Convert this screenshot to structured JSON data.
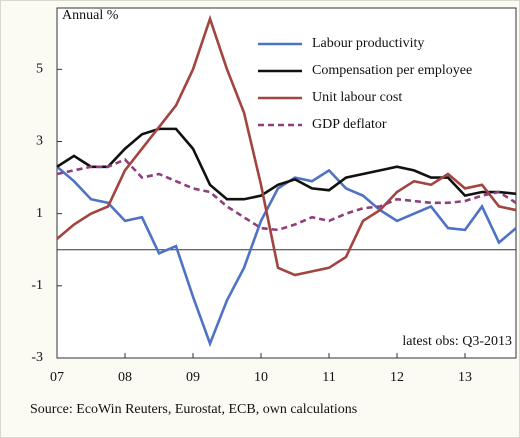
{
  "chart_data": {
    "type": "line",
    "y_label": "Annual %",
    "annotation": "latest obs: Q3-2013",
    "source": "Source: EcoWin Reuters, Eurostat, ECB, own calculations",
    "x": [
      2007,
      2007.25,
      2007.5,
      2007.75,
      2008,
      2008.25,
      2008.5,
      2008.75,
      2009,
      2009.25,
      2009.5,
      2009.75,
      2010,
      2010.25,
      2010.5,
      2010.75,
      2011,
      2011.25,
      2011.5,
      2011.75,
      2012,
      2012.25,
      2012.5,
      2012.75,
      2013,
      2013.25,
      2013.5,
      2013.75
    ],
    "xlim": [
      2007,
      2013.75
    ],
    "xticks": [
      {
        "value": 2007,
        "label": "07"
      },
      {
        "value": 2008,
        "label": "08"
      },
      {
        "value": 2009,
        "label": "09"
      },
      {
        "value": 2010,
        "label": "10"
      },
      {
        "value": 2011,
        "label": "11"
      },
      {
        "value": 2012,
        "label": "12"
      },
      {
        "value": 2013,
        "label": "13"
      }
    ],
    "ylim": [
      -3,
      6.7
    ],
    "yticks": [
      -3,
      -1,
      1,
      3,
      5
    ],
    "zero_line": true,
    "legend": "top-right",
    "series": [
      {
        "name": "Labour productivity",
        "color": "#4f72c4",
        "style": "solid",
        "values": [
          2.3,
          1.9,
          1.4,
          1.3,
          0.8,
          0.9,
          -0.1,
          0.1,
          -1.3,
          -2.6,
          -1.4,
          -0.5,
          0.8,
          1.7,
          2.0,
          1.9,
          2.2,
          1.7,
          1.5,
          1.1,
          0.8,
          1.0,
          1.2,
          0.6,
          0.55,
          1.2,
          0.2,
          0.6
        ]
      },
      {
        "name": "Compensation per employee",
        "color": "#111111",
        "style": "solid",
        "values": [
          2.3,
          2.6,
          2.3,
          2.3,
          2.8,
          3.2,
          3.35,
          3.35,
          2.8,
          1.8,
          1.4,
          1.4,
          1.5,
          1.8,
          1.95,
          1.7,
          1.65,
          2.0,
          2.1,
          2.2,
          2.3,
          2.2,
          2.0,
          2.0,
          1.5,
          1.6,
          1.6,
          1.55
        ]
      },
      {
        "name": "Unit labour cost",
        "color": "#a2443f",
        "style": "solid",
        "values": [
          0.3,
          0.7,
          1.0,
          1.2,
          2.2,
          2.8,
          3.4,
          4.0,
          5.0,
          6.4,
          5.0,
          3.8,
          1.8,
          -0.5,
          -0.7,
          -0.6,
          -0.5,
          -0.2,
          0.8,
          1.1,
          1.6,
          1.9,
          1.8,
          2.1,
          1.7,
          1.8,
          1.2,
          1.1
        ]
      },
      {
        "name": "GDP deflator",
        "color": "#8e3f7c",
        "style": "dashed",
        "values": [
          2.1,
          2.2,
          2.3,
          2.3,
          2.5,
          2.0,
          2.1,
          1.9,
          1.7,
          1.6,
          1.2,
          0.9,
          0.6,
          0.55,
          0.7,
          0.9,
          0.8,
          1.0,
          1.15,
          1.2,
          1.4,
          1.35,
          1.3,
          1.3,
          1.35,
          1.5,
          1.6,
          1.3
        ]
      }
    ]
  }
}
